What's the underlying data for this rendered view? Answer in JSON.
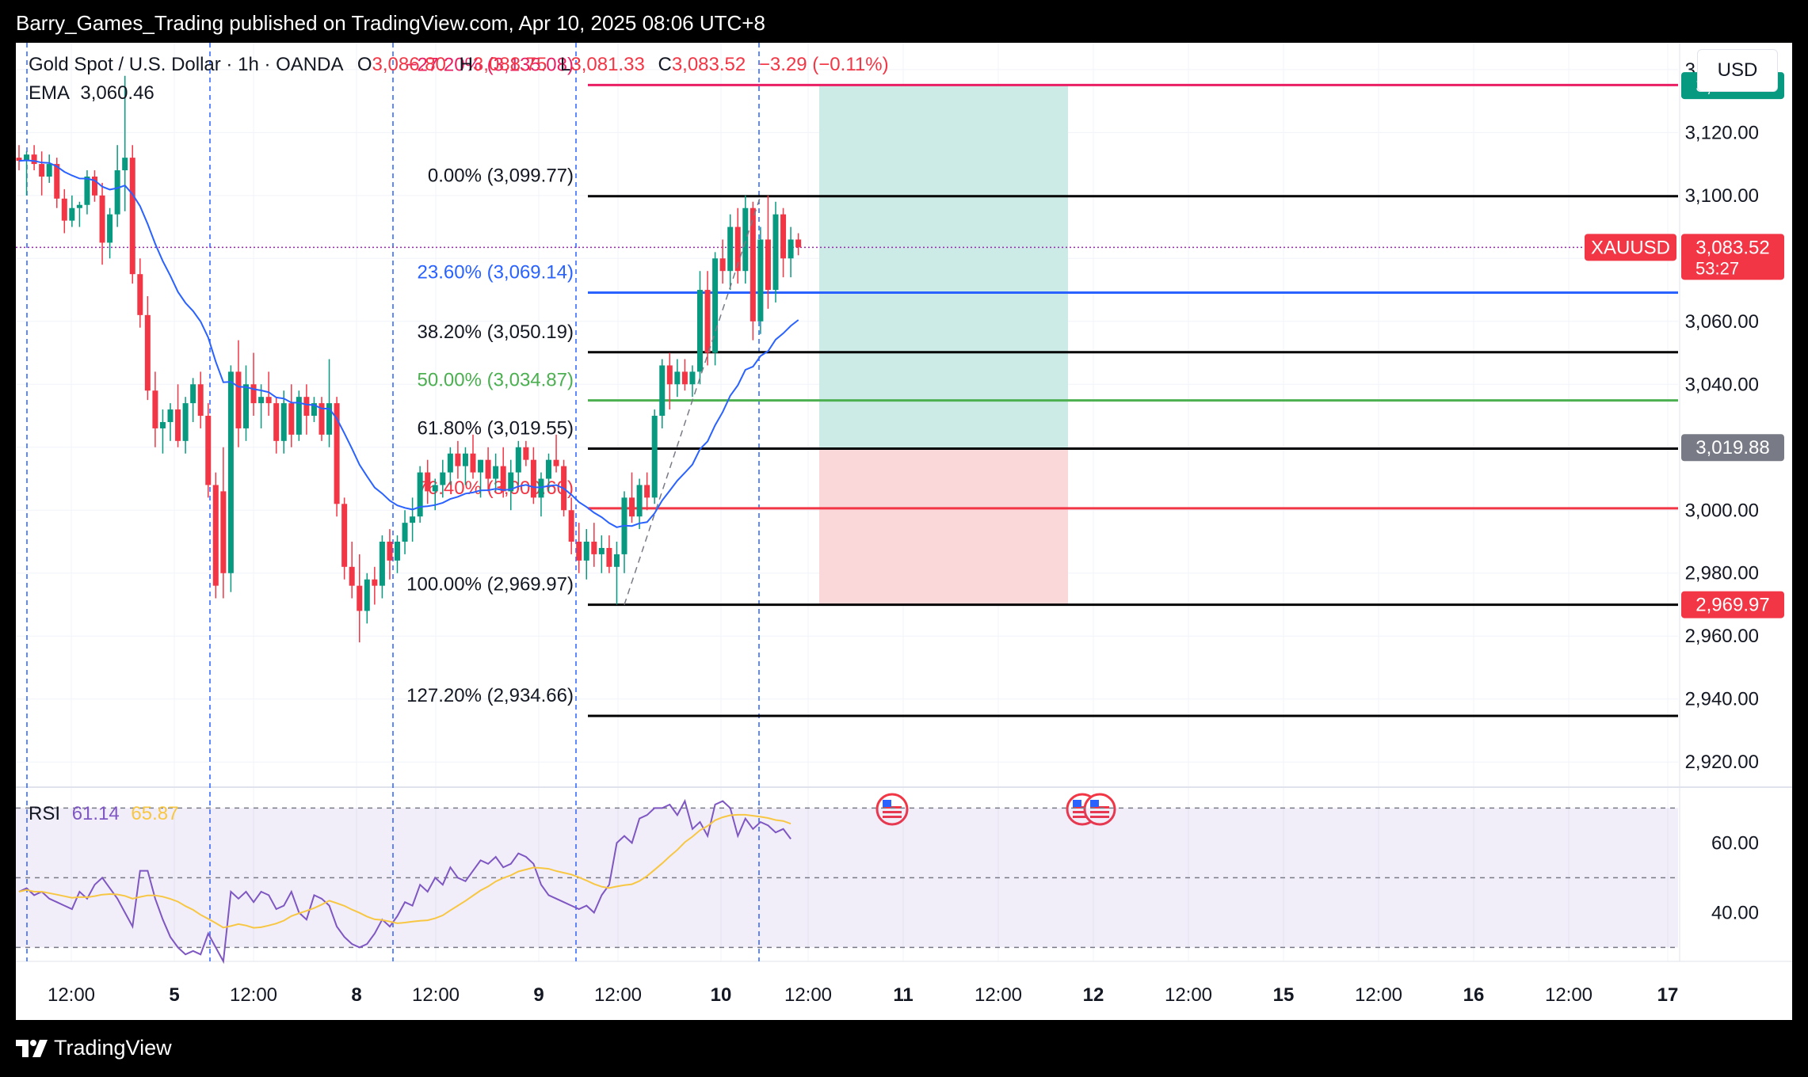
{
  "caption": "Barry_Games_Trading published on TradingView.com, Apr 10, 2025 08:06 UTC+8",
  "footer": {
    "brand": "TradingView",
    "logo_icon": "tradingview-logo-icon"
  },
  "currency_button": "USD",
  "legend": {
    "symbol": "Gold Spot / U.S. Dollar · 1h · OANDA",
    "o_label": "O",
    "o_value": "3,086.80",
    "h_label": "H",
    "h_value": "3,088.75",
    "l_label": "L",
    "l_value": "3,081.33",
    "c_label": "C",
    "c_value": "3,083.52",
    "change": "−3.29 (−0.11%)"
  },
  "ema": {
    "label": "EMA",
    "value": "3,060.46",
    "color": "#2962ff"
  },
  "rsi": {
    "label": "RSI",
    "value": "61.14",
    "ma_value": "65.87",
    "line_color": "#7e57c2",
    "ma_color": "#f7c744"
  },
  "colors": {
    "up": "#089981",
    "down": "#f23645",
    "ema": "#2962ff",
    "tp_zone": "#cdebe6",
    "sl_zone": "#fad8da"
  },
  "chart_data": {
    "type": "candlestick",
    "timeframe": "1h",
    "price_axis": {
      "ticks": [
        2920,
        2940,
        2960,
        2980,
        3000,
        3020,
        3040,
        3060,
        3080,
        3100,
        3120,
        3140
      ],
      "tick_labels": [
        "2,920.00",
        "2,940.00",
        "2,960.00",
        "2,980.00",
        "3,000.00",
        "",
        "3,040.00",
        "3,060.00",
        "",
        "3,100.00",
        "3,120.00",
        "3,140.00"
      ],
      "range": [
        2912,
        3146
      ]
    },
    "time_axis": {
      "labels": [
        "12:00",
        "5",
        "12:00",
        "8",
        "12:00",
        "9",
        "12:00",
        "10",
        "12:00",
        "11",
        "12:00",
        "12",
        "12:00",
        "15",
        "12:00",
        "16",
        "12:00",
        "17"
      ]
    },
    "rsi_axis": {
      "ticks": [
        40,
        60
      ],
      "tick_labels": [
        "40.00",
        "60.00"
      ],
      "bands": [
        30,
        50,
        70
      ],
      "range": [
        26,
        76
      ]
    },
    "candles": [
      [
        3112,
        3116,
        3108,
        3111
      ],
      [
        3111,
        3114,
        3100,
        3113
      ],
      [
        3113,
        3116,
        3108,
        3110
      ],
      [
        3110,
        3114,
        3100,
        3106
      ],
      [
        3106,
        3113,
        3104,
        3110
      ],
      [
        3110,
        3112,
        3096,
        3099
      ],
      [
        3099,
        3102,
        3088,
        3092
      ],
      [
        3092,
        3100,
        3090,
        3096
      ],
      [
        3096,
        3098,
        3090,
        3097
      ],
      [
        3097,
        3108,
        3094,
        3106
      ],
      [
        3106,
        3108,
        3098,
        3100
      ],
      [
        3100,
        3104,
        3078,
        3085
      ],
      [
        3085,
        3096,
        3080,
        3094
      ],
      [
        3094,
        3116,
        3090,
        3108
      ],
      [
        3108,
        3138,
        3095,
        3112
      ],
      [
        3112,
        3116,
        3072,
        3075
      ],
      [
        3075,
        3080,
        3058,
        3062
      ],
      [
        3062,
        3068,
        3035,
        3038
      ],
      [
        3038,
        3044,
        3020,
        3026
      ],
      [
        3026,
        3032,
        3018,
        3028
      ],
      [
        3028,
        3034,
        3022,
        3032
      ],
      [
        3032,
        3040,
        3020,
        3022
      ],
      [
        3022,
        3036,
        3018,
        3034
      ],
      [
        3034,
        3042,
        3028,
        3040
      ],
      [
        3040,
        3044,
        3026,
        3030
      ],
      [
        3030,
        3034,
        3004,
        3008
      ],
      [
        3008,
        3012,
        2972,
        2976
      ],
      [
        3006,
        3020,
        2972,
        2980
      ],
      [
        2980,
        3046,
        2974,
        3044
      ],
      [
        3044,
        3054,
        3020,
        3026
      ],
      [
        3026,
        3046,
        3022,
        3040
      ],
      [
        3040,
        3050,
        3030,
        3034
      ],
      [
        3034,
        3040,
        3026,
        3036
      ],
      [
        3036,
        3044,
        3030,
        3034
      ],
      [
        3034,
        3036,
        3018,
        3022
      ],
      [
        3022,
        3038,
        3018,
        3034
      ],
      [
        3034,
        3040,
        3020,
        3024
      ],
      [
        3024,
        3038,
        3022,
        3036
      ],
      [
        3036,
        3040,
        3024,
        3030
      ],
      [
        3030,
        3036,
        3028,
        3034
      ],
      [
        3034,
        3036,
        3022,
        3024
      ],
      [
        3024,
        3048,
        3020,
        3034
      ],
      [
        3034,
        3036,
        2998,
        3002
      ],
      [
        3002,
        3004,
        2978,
        2982
      ],
      [
        2982,
        2990,
        2972,
        2976
      ],
      [
        2976,
        2986,
        2958,
        2968
      ],
      [
        2968,
        2980,
        2964,
        2978
      ],
      [
        2978,
        2982,
        2970,
        2976
      ],
      [
        2976,
        2992,
        2972,
        2990
      ],
      [
        2990,
        2994,
        2978,
        2984
      ],
      [
        2984,
        2992,
        2980,
        2990
      ],
      [
        2990,
        3000,
        2986,
        2996
      ],
      [
        2996,
        3004,
        2990,
        2998
      ],
      [
        2998,
        3014,
        2996,
        3012
      ],
      [
        3012,
        3016,
        3002,
        3006
      ],
      [
        3006,
        3010,
        3000,
        3008
      ],
      [
        3008,
        3016,
        3004,
        3012
      ],
      [
        3012,
        3020,
        3008,
        3018
      ],
      [
        3018,
        3022,
        3010,
        3014
      ],
      [
        3014,
        3020,
        3008,
        3018
      ],
      [
        3018,
        3024,
        3010,
        3012
      ],
      [
        3012,
        3016,
        3004,
        3016
      ],
      [
        3016,
        3020,
        3006,
        3010
      ],
      [
        3010,
        3018,
        3006,
        3014
      ],
      [
        3014,
        3020,
        3004,
        3006
      ],
      [
        3006,
        3016,
        3000,
        3012
      ],
      [
        3012,
        3022,
        3008,
        3020
      ],
      [
        3020,
        3022,
        3014,
        3016
      ],
      [
        3016,
        3020,
        3002,
        3004
      ],
      [
        3004,
        3012,
        2998,
        3010
      ],
      [
        3010,
        3018,
        3006,
        3016
      ],
      [
        3016,
        3024,
        3012,
        3014
      ],
      [
        3014,
        3016,
        2998,
        3000
      ],
      [
        3000,
        3004,
        2986,
        2990
      ],
      [
        2990,
        2996,
        2980,
        2984
      ],
      [
        2984,
        2994,
        2978,
        2990
      ],
      [
        2990,
        2996,
        2982,
        2986
      ],
      [
        2986,
        2992,
        2980,
        2988
      ],
      [
        2988,
        2992,
        2980,
        2982
      ],
      [
        2982,
        2990,
        2970,
        2986
      ],
      [
        2986,
        3006,
        2980,
        3004
      ],
      [
        3004,
        3012,
        2996,
        2998
      ],
      [
        2998,
        3010,
        2994,
        3008
      ],
      [
        3008,
        3012,
        3000,
        3004
      ],
      [
        3004,
        3032,
        3002,
        3030
      ],
      [
        3030,
        3048,
        3026,
        3046
      ],
      [
        3046,
        3050,
        3032,
        3040
      ],
      [
        3040,
        3048,
        3036,
        3044
      ],
      [
        3044,
        3048,
        3038,
        3040
      ],
      [
        3040,
        3046,
        3036,
        3044
      ],
      [
        3044,
        3076,
        3040,
        3070
      ],
      [
        3070,
        3076,
        3046,
        3050
      ],
      [
        3050,
        3082,
        3046,
        3080
      ],
      [
        3080,
        3086,
        3072,
        3076
      ],
      [
        3076,
        3094,
        3070,
        3090
      ],
      [
        3090,
        3096,
        3072,
        3076
      ],
      [
        3076,
        3100,
        3072,
        3096
      ],
      [
        3096,
        3098,
        3054,
        3060
      ],
      [
        3060,
        3090,
        3056,
        3086
      ],
      [
        3086,
        3100,
        3064,
        3070
      ],
      [
        3070,
        3098,
        3066,
        3094
      ],
      [
        3094,
        3096,
        3074,
        3080
      ],
      [
        3080,
        3090,
        3074,
        3086
      ],
      [
        3086,
        3088,
        3081,
        3083.52
      ]
    ],
    "ema_end": 3060.46,
    "rsi_values": [
      46,
      47,
      45,
      46,
      44,
      43,
      42,
      41,
      46,
      44,
      48,
      50,
      47,
      44,
      40,
      36,
      52,
      52,
      44,
      38,
      33,
      30,
      28,
      29,
      28,
      34,
      30,
      26,
      46,
      44,
      46,
      43,
      46,
      45,
      41,
      42,
      46,
      40,
      38,
      45,
      44,
      42,
      36,
      33,
      31,
      30,
      31,
      34,
      38,
      36,
      39,
      43,
      42,
      48,
      46,
      50,
      48,
      53,
      50,
      49,
      52,
      55,
      54,
      56,
      53,
      54,
      57,
      56,
      54,
      48,
      45,
      44,
      43,
      42,
      41,
      42,
      40,
      45,
      48,
      60,
      62,
      60,
      67,
      68,
      70,
      70,
      71,
      68,
      72,
      64,
      66,
      62,
      71,
      72,
      70,
      62,
      67,
      64,
      66,
      65,
      63,
      64,
      61.14
    ],
    "fib_levels": [
      {
        "label": "−27.20% (3,135.08)",
        "price": 3135.08,
        "color": "#e91e63",
        "label_color": "#e91e63"
      },
      {
        "label": "0.00% (3,099.77)",
        "price": 3099.77,
        "color": "#000000",
        "label_color": "#131722"
      },
      {
        "label": "23.60% (3,069.14)",
        "price": 3069.14,
        "color": "#2962ff",
        "label_color": "#2962ff"
      },
      {
        "label": "38.20% (3,050.19)",
        "price": 3050.19,
        "color": "#000000",
        "label_color": "#131722"
      },
      {
        "label": "50.00% (3,034.87)",
        "price": 3034.87,
        "color": "#4caf50",
        "label_color": "#4caf50"
      },
      {
        "label": "61.80% (3,019.55)",
        "price": 3019.55,
        "color": "#000000",
        "label_color": "#131722"
      },
      {
        "label": "76.40% (3,000.60)",
        "price": 3000.6,
        "color": "#f23645",
        "label_color": "#f23645"
      },
      {
        "label": "100.00% (2,969.97)",
        "price": 2969.97,
        "color": "#000000",
        "label_color": "#131722"
      },
      {
        "label": "127.20% (2,934.66)",
        "price": 2934.66,
        "color": "#000000",
        "label_color": "#131722"
      }
    ],
    "position": {
      "entry": 3019.88,
      "target": 3134.91,
      "stop": 2969.97
    },
    "price_tags": [
      {
        "text": "3,134.91",
        "price": 3134.91,
        "bg": "#089981",
        "fg": "#ffffff"
      },
      {
        "text": "3,083.52",
        "price": 3083.52,
        "bg": "#f23645",
        "fg": "#ffffff",
        "sub": "53:27",
        "symbol": "XAUUSD"
      },
      {
        "text": "3,019.88",
        "price": 3019.88,
        "bg": "#787b86",
        "fg": "#ffffff"
      },
      {
        "text": "2,969.97",
        "price": 2969.97,
        "bg": "#f23645",
        "fg": "#ffffff"
      }
    ],
    "event_icons": [
      "us-flag-icon",
      "us-flag-icon",
      "us-flag-icon"
    ]
  }
}
